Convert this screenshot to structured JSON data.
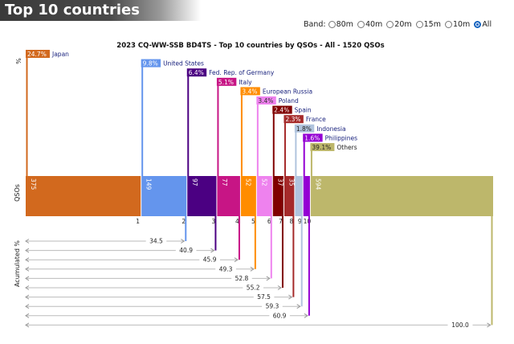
{
  "page_title": "Top 10 countries",
  "band_filter": {
    "label": "Band:",
    "options": [
      "80m",
      "40m",
      "20m",
      "15m",
      "10m",
      "All"
    ],
    "selected": "All"
  },
  "chart_data": {
    "type": "bar",
    "title": "2023 CQ-WW-SSB BD4TS - Top 10 countries by QSOs - All - 1520 QSOs",
    "total": 1520,
    "ylabel_top": "%",
    "ylabel_mid": "QSOs",
    "ylabel_bottom": "Acumulated %",
    "categories": [
      "Japan",
      "United States",
      "Fed. Rep. of Germany",
      "Italy",
      "European Russia",
      "Poland",
      "Spain",
      "France",
      "Indonesia",
      "Philippines",
      "Others"
    ],
    "values": [
      375,
      149,
      97,
      77,
      52,
      52,
      37,
      35,
      27,
      24,
      594
    ],
    "percent_labels": [
      "24.7%",
      "9.8%",
      "6.4%",
      "5.1%",
      "3.4%",
      "3.4%",
      "2.4%",
      "2.3%",
      "1.8%",
      "1.6%",
      "39.1%"
    ],
    "value_labels": [
      "375",
      "149",
      "97",
      "77",
      "52",
      "52",
      "37",
      "35",
      "",
      "",
      "594"
    ],
    "rank_labels": [
      "1",
      "2",
      "3",
      "4",
      "5",
      "6",
      "7",
      "8",
      "9",
      "10",
      ""
    ],
    "cumulative": [
      "",
      "34.5",
      "40.9",
      "45.9",
      "49.3",
      "52.8",
      "55.2",
      "57.5",
      "59.3",
      "60.9",
      "100.0"
    ],
    "colors": [
      "#d2691e",
      "#6495ed",
      "#4b0082",
      "#c71585",
      "#ff8c00",
      "#ee82ee",
      "#800000",
      "#a52a2a",
      "#b0c4de",
      "#9400d3",
      "#bdb76b"
    ]
  }
}
